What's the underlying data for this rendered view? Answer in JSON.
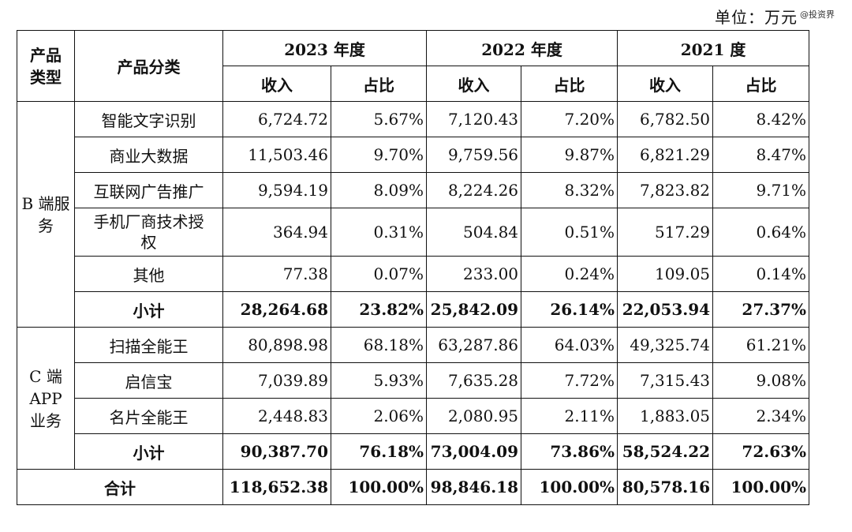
{
  "unit_label": "单位：万元",
  "watermark": "@投资界",
  "headers": {
    "type_col": "产品类型",
    "category_col": "产品分类",
    "years": [
      "2023 年度",
      "2022 年度",
      "2021 度"
    ],
    "revenue": "收入",
    "share": "占比"
  },
  "groups": [
    {
      "name": "B 端服务",
      "rows": [
        {
          "category": "智能文字识别",
          "values": [
            "6,724.72",
            "5.67%",
            "7,120.43",
            "7.20%",
            "6,782.50",
            "8.42%"
          ]
        },
        {
          "category": "商业大数据",
          "values": [
            "11,503.46",
            "9.70%",
            "9,759.56",
            "9.87%",
            "6,821.29",
            "8.47%"
          ]
        },
        {
          "category": "互联网广告推广",
          "values": [
            "9,594.19",
            "8.09%",
            "8,224.26",
            "8.32%",
            "7,823.82",
            "9.71%"
          ]
        },
        {
          "category": "手机厂商技术授权",
          "values": [
            "364.94",
            "0.31%",
            "504.84",
            "0.51%",
            "517.29",
            "0.64%"
          ]
        },
        {
          "category": "其他",
          "values": [
            "77.38",
            "0.07%",
            "233.00",
            "0.24%",
            "109.05",
            "0.14%"
          ]
        }
      ],
      "subtotal": {
        "label": "小计",
        "values": [
          "28,264.68",
          "23.82%",
          "25,842.09",
          "26.14%",
          "22,053.94",
          "27.37%"
        ]
      }
    },
    {
      "name": "C 端 APP 业务",
      "rows": [
        {
          "category": "扫描全能王",
          "values": [
            "80,898.98",
            "68.18%",
            "63,287.86",
            "64.03%",
            "49,325.74",
            "61.21%"
          ]
        },
        {
          "category": "启信宝",
          "values": [
            "7,039.89",
            "5.93%",
            "7,635.28",
            "7.72%",
            "7,315.43",
            "9.08%"
          ]
        },
        {
          "category": "名片全能王",
          "values": [
            "2,448.83",
            "2.06%",
            "2,080.95",
            "2.11%",
            "1,883.05",
            "2.34%"
          ]
        }
      ],
      "subtotal": {
        "label": "小计",
        "values": [
          "90,387.70",
          "76.18%",
          "73,004.09",
          "73.86%",
          "58,524.22",
          "72.63%"
        ]
      }
    }
  ],
  "total": {
    "label": "合计",
    "values": [
      "118,652.38",
      "100.00%",
      "98,846.18",
      "100.00%",
      "80,578.16",
      "100.00%"
    ]
  }
}
